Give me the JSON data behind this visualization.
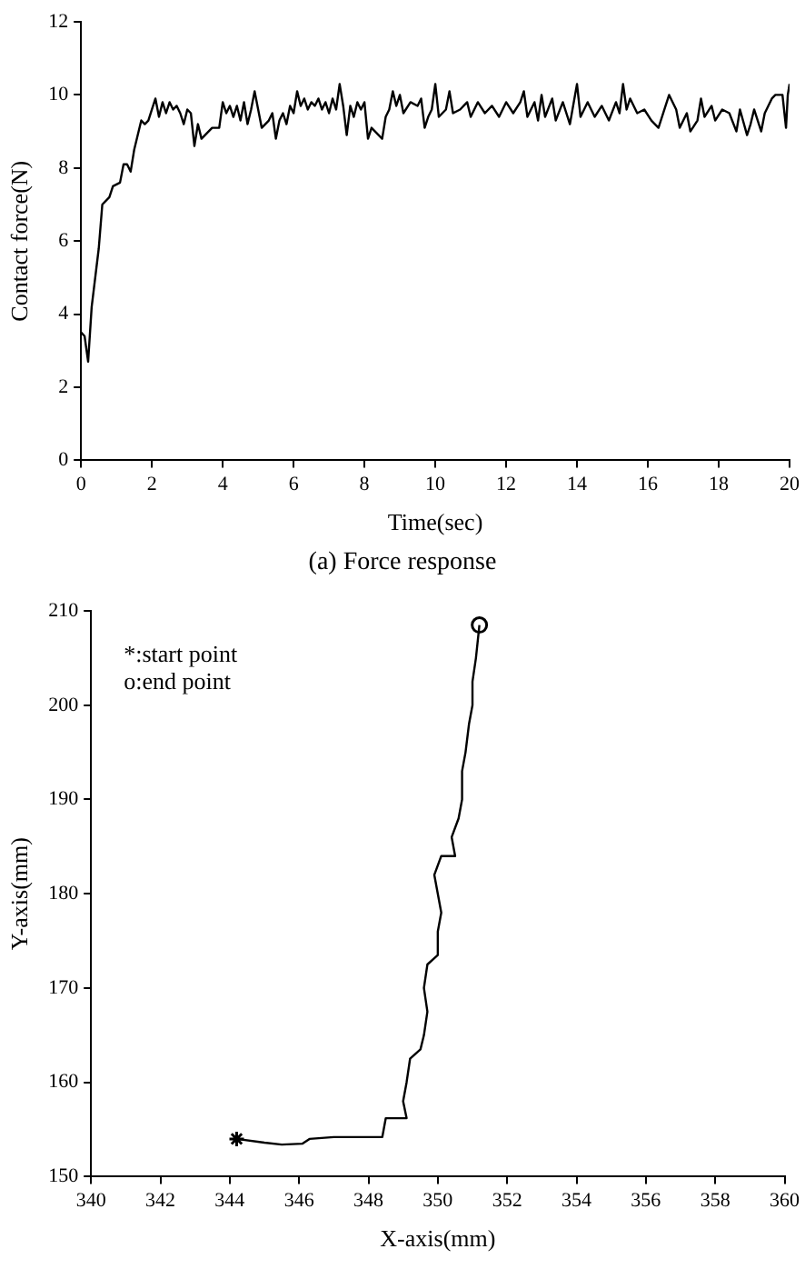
{
  "chart_data": [
    {
      "type": "line",
      "xlabel": "Time(sec)",
      "ylabel": "Contact force(N)",
      "annotations": [
        "(a) Force response"
      ],
      "xlim": [
        0,
        20
      ],
      "xticks": [
        0,
        2,
        4,
        6,
        8,
        10,
        12,
        14,
        16,
        18,
        20
      ],
      "ylim": [
        0,
        12
      ],
      "yticks": [
        0,
        2,
        4,
        6,
        8,
        10,
        12
      ],
      "marker": "none",
      "series": [
        {
          "color": "#000000",
          "x": [
            0,
            0.1,
            0.2,
            0.3,
            0.5,
            0.6,
            0.8,
            0.9,
            1.1,
            1.2,
            1.3,
            1.4,
            1.5,
            1.7,
            1.8,
            1.9,
            2.0,
            2.1,
            2.2,
            2.3,
            2.4,
            2.5,
            2.6,
            2.7,
            2.8,
            2.9,
            3.0,
            3.1,
            3.2,
            3.3,
            3.4,
            3.5,
            3.7,
            3.9,
            4.0,
            4.1,
            4.2,
            4.3,
            4.4,
            4.5,
            4.6,
            4.7,
            4.8,
            4.9,
            5.0,
            5.1,
            5.3,
            5.4,
            5.5,
            5.6,
            5.7,
            5.8,
            5.9,
            6.0,
            6.1,
            6.2,
            6.3,
            6.4,
            6.5,
            6.6,
            6.7,
            6.8,
            6.9,
            7.0,
            7.1,
            7.2,
            7.3,
            7.4,
            7.5,
            7.6,
            7.7,
            7.8,
            7.9,
            8.0,
            8.1,
            8.2,
            8.3,
            8.4,
            8.5,
            8.6,
            8.7,
            8.8,
            8.9,
            9.0,
            9.1,
            9.3,
            9.5,
            9.6,
            9.7,
            9.8,
            9.9,
            10.0,
            10.1,
            10.3,
            10.4,
            10.5,
            10.7,
            10.9,
            11.0,
            11.2,
            11.4,
            11.6,
            11.8,
            12.0,
            12.2,
            12.4,
            12.5,
            12.6,
            12.8,
            12.9,
            13.0,
            13.1,
            13.3,
            13.4,
            13.6,
            13.8,
            14.0,
            14.1,
            14.3,
            14.5,
            14.7,
            14.9,
            15.1,
            15.2,
            15.3,
            15.4,
            15.5,
            15.7,
            15.9,
            16.1,
            16.3,
            16.5,
            16.6,
            16.8,
            16.9,
            17.1,
            17.2,
            17.4,
            17.5,
            17.6,
            17.8,
            17.9,
            18.1,
            18.3,
            18.5,
            18.6,
            18.8,
            18.9,
            19.0,
            19.2,
            19.3,
            19.5,
            19.6,
            19.8,
            19.9,
            19.95,
            20.0
          ],
          "values": [
            3.5,
            3.4,
            2.7,
            4.2,
            5.8,
            7.0,
            7.2,
            7.5,
            7.6,
            8.1,
            8.1,
            7.9,
            8.5,
            9.3,
            9.2,
            9.3,
            9.6,
            9.9,
            9.4,
            9.8,
            9.5,
            9.8,
            9.6,
            9.7,
            9.5,
            9.2,
            9.6,
            9.5,
            8.6,
            9.2,
            8.8,
            8.9,
            9.1,
            9.1,
            9.8,
            9.5,
            9.7,
            9.4,
            9.7,
            9.3,
            9.8,
            9.2,
            9.6,
            10.1,
            9.6,
            9.1,
            9.3,
            9.5,
            8.8,
            9.3,
            9.5,
            9.2,
            9.7,
            9.5,
            10.1,
            9.7,
            9.9,
            9.6,
            9.8,
            9.7,
            9.9,
            9.6,
            9.8,
            9.5,
            9.9,
            9.6,
            10.3,
            9.7,
            8.9,
            9.7,
            9.4,
            9.8,
            9.6,
            9.8,
            8.8,
            9.1,
            9.0,
            8.9,
            8.8,
            9.4,
            9.6,
            10.1,
            9.7,
            10.0,
            9.5,
            9.8,
            9.7,
            9.9,
            9.1,
            9.4,
            9.6,
            10.3,
            9.4,
            9.6,
            10.1,
            9.5,
            9.6,
            9.8,
            9.4,
            9.8,
            9.5,
            9.7,
            9.4,
            9.8,
            9.5,
            9.8,
            10.1,
            9.4,
            9.8,
            9.3,
            10.0,
            9.4,
            9.9,
            9.3,
            9.8,
            9.2,
            10.3,
            9.4,
            9.8,
            9.4,
            9.7,
            9.3,
            9.8,
            9.5,
            10.3,
            9.6,
            9.9,
            9.5,
            9.6,
            9.3,
            9.1,
            9.7,
            10.0,
            9.6,
            9.1,
            9.5,
            9.0,
            9.3,
            9.9,
            9.4,
            9.7,
            9.3,
            9.6,
            9.5,
            9.0,
            9.6,
            8.9,
            9.2,
            9.6,
            9.0,
            9.5,
            9.9,
            10.0,
            10.0,
            9.1,
            10.0,
            10.3
          ]
        }
      ]
    },
    {
      "type": "line",
      "xlabel": "X-axis(mm)",
      "ylabel": "Y-axis(mm)",
      "annotations": [
        "*:start point",
        "o:end point"
      ],
      "xlim": [
        340,
        360
      ],
      "xticks": [
        340,
        342,
        344,
        346,
        348,
        350,
        352,
        354,
        356,
        358,
        360
      ],
      "ylim": [
        150,
        210
      ],
      "yticks": [
        150,
        160,
        170,
        180,
        190,
        200,
        210
      ],
      "series": [
        {
          "color": "#000000",
          "marker": "none",
          "x": [
            344.2,
            345,
            345.5,
            346.1,
            346.3,
            347,
            348.4,
            348.5,
            349.1,
            349.0,
            349.1,
            349.2,
            349.5,
            349.6,
            349.7,
            349.6,
            349.7,
            350.0,
            350.0,
            350.1,
            350.0,
            349.9,
            350.1,
            350.5,
            350.4,
            350.6,
            350.7,
            350.7,
            350.8,
            350.9,
            351.0,
            351.0,
            351.1,
            351.2
          ],
          "values": [
            154,
            153.6,
            153.4,
            153.5,
            154,
            154.2,
            154.2,
            156.2,
            156.2,
            158,
            160,
            162.5,
            163.5,
            165,
            167.5,
            170,
            172.5,
            173.5,
            176,
            178,
            180,
            182,
            184,
            184,
            186,
            188,
            190,
            193,
            195,
            198,
            200,
            202.5,
            205,
            208.5
          ]
        },
        {
          "type": "scatter",
          "color": "#000000",
          "marker": "cross",
          "x": [
            344.2
          ],
          "values": [
            154
          ]
        },
        {
          "type": "scatter",
          "color": "#000000",
          "marker": "circle",
          "x": [
            351.2
          ],
          "values": [
            208.5
          ]
        }
      ]
    }
  ]
}
